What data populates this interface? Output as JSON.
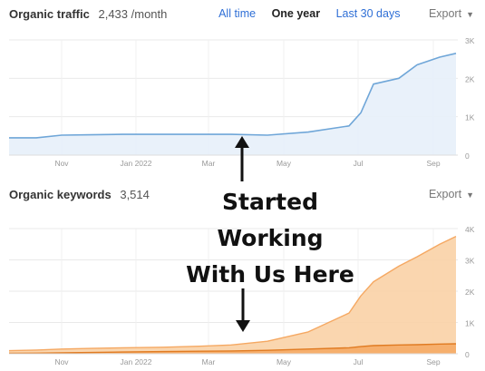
{
  "traffic": {
    "title": "Organic traffic",
    "value": "2,433 /month",
    "tabs": [
      "All time",
      "One year",
      "Last 30 days"
    ],
    "active_tab": "One year",
    "export_label": "Export"
  },
  "keywords": {
    "title": "Organic keywords",
    "value": "3,514",
    "export_label": "Export"
  },
  "annotation": {
    "lines": [
      "Started",
      "Working",
      "With Us Here"
    ]
  },
  "colors": {
    "traffic_line": "#6fa6d8",
    "traffic_fill": "#e7f0fa",
    "keywords_fill": "#f9d1a6",
    "keywords_line": "#f5a862",
    "keywords_dark": "#e07b22",
    "link": "#2f6fd6"
  },
  "chart_data": [
    {
      "type": "area",
      "title": "Organic traffic",
      "x_ticks": [
        "Nov",
        "Jan 2022",
        "Mar",
        "May",
        "Jul",
        "Sep"
      ],
      "y_ticks": [
        "0",
        "1K",
        "2K",
        "3K"
      ],
      "ylim": [
        0,
        3000
      ],
      "grid": true,
      "x": [
        "Sep 2021",
        "Oct 2021",
        "Nov 2021",
        "Dec 2021",
        "Jan 2022",
        "Feb 2022",
        "Mar 2022",
        "Apr 2022",
        "May 2022",
        "Jun 2022",
        "early Jul 2022",
        "mid Jul 2022",
        "late Jul 2022",
        "Aug 2022",
        "early Sep 2022",
        "mid Sep 2022",
        "late Sep 2022"
      ],
      "series": [
        {
          "values": [
            450,
            450,
            520,
            530,
            540,
            540,
            540,
            540,
            520,
            600,
            760,
            1100,
            1850,
            2000,
            2350,
            2550,
            2650
          ]
        }
      ]
    },
    {
      "type": "area",
      "title": "Organic keywords",
      "x_ticks": [
        "Nov",
        "Jan 2022",
        "Mar",
        "May",
        "Jul",
        "Sep"
      ],
      "y_ticks": [
        "0",
        "1K",
        "2K",
        "3K",
        "4K"
      ],
      "ylim": [
        0,
        4000
      ],
      "grid": true,
      "x": [
        "Sep 2021",
        "Oct 2021",
        "Nov 2021",
        "Dec 2021",
        "Jan 2022",
        "Feb 2022",
        "Mar 2022",
        "Apr 2022",
        "May 2022",
        "Jun 2022",
        "early Jul 2022",
        "mid Jul 2022",
        "late Jul 2022",
        "Aug 2022",
        "early Sep 2022",
        "mid Sep 2022",
        "late Sep 2022"
      ],
      "series": [
        {
          "values": [
            100,
            120,
            150,
            170,
            190,
            210,
            240,
            280,
            400,
            700,
            1300,
            1850,
            2300,
            2800,
            3100,
            3500,
            3750
          ]
        },
        {
          "values": [
            15,
            20,
            30,
            40,
            55,
            70,
            80,
            90,
            110,
            150,
            190,
            230,
            260,
            280,
            290,
            310,
            320
          ]
        }
      ]
    }
  ]
}
